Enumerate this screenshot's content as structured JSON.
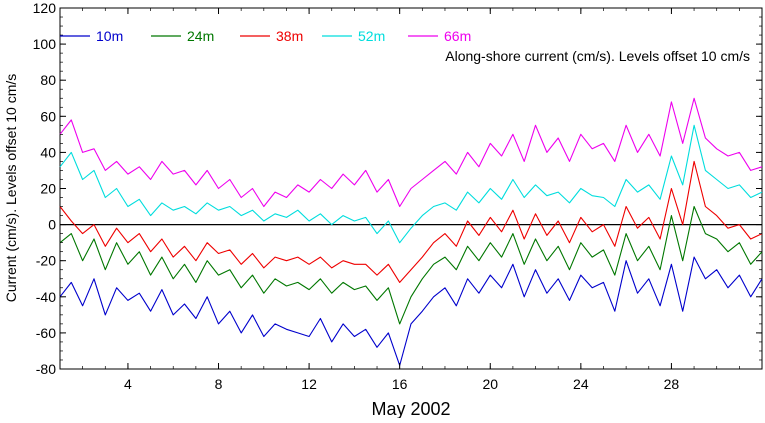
{
  "chart_data": {
    "type": "line",
    "xlabel": "May 2002",
    "ylabel": "Current (cm/s). Levels offset 10 cm/s",
    "annotation": "Along-shore current (cm/s). Levels offset 10 cm/s",
    "xlim": [
      1,
      32
    ],
    "ylim": [
      -80,
      120
    ],
    "x_ticks": [
      4,
      8,
      12,
      16,
      20,
      24,
      28
    ],
    "y_ticks": [
      -80,
      -60,
      -40,
      -20,
      0,
      20,
      40,
      60,
      80,
      100,
      120
    ],
    "zero_line": 0,
    "legend_position": "top-left",
    "series": [
      {
        "name": "10m",
        "color": "#0000cc",
        "x": [
          1,
          1.5,
          2,
          2.5,
          3,
          3.5,
          4,
          4.5,
          5,
          5.5,
          6,
          6.5,
          7,
          7.5,
          8,
          8.5,
          9,
          9.5,
          10,
          10.5,
          11,
          11.5,
          12,
          12.5,
          13,
          13.5,
          14,
          14.5,
          15,
          15.5,
          16,
          16.5,
          17,
          17.5,
          18,
          18.5,
          19,
          19.5,
          20,
          20.5,
          21,
          21.5,
          22,
          22.5,
          23,
          23.5,
          24,
          24.5,
          25,
          25.5,
          26,
          26.5,
          27,
          27.5,
          28,
          28.5,
          29,
          29.5,
          30,
          30.5,
          31,
          31.5,
          32
        ],
        "values": [
          -40,
          -32,
          -45,
          -30,
          -50,
          -35,
          -42,
          -38,
          -48,
          -36,
          -50,
          -44,
          -52,
          -40,
          -55,
          -48,
          -60,
          -50,
          -62,
          -55,
          -58,
          -60,
          -62,
          -52,
          -65,
          -55,
          -62,
          -58,
          -68,
          -60,
          -78,
          -55,
          -48,
          -40,
          -35,
          -45,
          -30,
          -38,
          -28,
          -35,
          -22,
          -40,
          -25,
          -38,
          -30,
          -42,
          -28,
          -35,
          -32,
          -48,
          -20,
          -38,
          -30,
          -45,
          -22,
          -48,
          -18,
          -30,
          -25,
          -35,
          -28,
          -40,
          -30
        ]
      },
      {
        "name": "24m",
        "color": "#007700",
        "x": [
          1,
          1.5,
          2,
          2.5,
          3,
          3.5,
          4,
          4.5,
          5,
          5.5,
          6,
          6.5,
          7,
          7.5,
          8,
          8.5,
          9,
          9.5,
          10,
          10.5,
          11,
          11.5,
          12,
          12.5,
          13,
          13.5,
          14,
          14.5,
          15,
          15.5,
          16,
          16.5,
          17,
          17.5,
          18,
          18.5,
          19,
          19.5,
          20,
          20.5,
          21,
          21.5,
          22,
          22.5,
          23,
          23.5,
          24,
          24.5,
          25,
          25.5,
          26,
          26.5,
          27,
          27.5,
          28,
          28.5,
          29,
          29.5,
          30,
          30.5,
          31,
          31.5,
          32
        ],
        "values": [
          -10,
          -5,
          -20,
          -8,
          -25,
          -10,
          -22,
          -15,
          -28,
          -18,
          -30,
          -22,
          -32,
          -20,
          -28,
          -25,
          -35,
          -28,
          -38,
          -30,
          -34,
          -32,
          -36,
          -30,
          -38,
          -32,
          -36,
          -34,
          -42,
          -35,
          -55,
          -40,
          -30,
          -22,
          -18,
          -25,
          -12,
          -20,
          -10,
          -18,
          -5,
          -22,
          -8,
          -20,
          -12,
          -25,
          -10,
          -18,
          -14,
          -28,
          -5,
          -20,
          -12,
          -25,
          5,
          -20,
          10,
          -5,
          -8,
          -15,
          -10,
          -22,
          -15
        ]
      },
      {
        "name": "38m",
        "color": "#ee0000",
        "x": [
          1,
          1.5,
          2,
          2.5,
          3,
          3.5,
          4,
          4.5,
          5,
          5.5,
          6,
          6.5,
          7,
          7.5,
          8,
          8.5,
          9,
          9.5,
          10,
          10.5,
          11,
          11.5,
          12,
          12.5,
          13,
          13.5,
          14,
          14.5,
          15,
          15.5,
          16,
          16.5,
          17,
          17.5,
          18,
          18.5,
          19,
          19.5,
          20,
          20.5,
          21,
          21.5,
          22,
          22.5,
          23,
          23.5,
          24,
          24.5,
          25,
          25.5,
          26,
          26.5,
          27,
          27.5,
          28,
          28.5,
          29,
          29.5,
          30,
          30.5,
          31,
          31.5,
          32
        ],
        "values": [
          10,
          2,
          -5,
          0,
          -12,
          -2,
          -10,
          -5,
          -15,
          -8,
          -18,
          -12,
          -20,
          -10,
          -16,
          -14,
          -22,
          -16,
          -24,
          -18,
          -20,
          -18,
          -22,
          -18,
          -24,
          -20,
          -22,
          -22,
          -28,
          -22,
          -32,
          -25,
          -18,
          -10,
          -5,
          -12,
          2,
          -6,
          4,
          -4,
          8,
          -8,
          6,
          -6,
          2,
          -10,
          4,
          -4,
          0,
          -12,
          10,
          -2,
          4,
          -8,
          20,
          0,
          35,
          10,
          5,
          -2,
          0,
          -8,
          -5
        ]
      },
      {
        "name": "52m",
        "color": "#00dddd",
        "x": [
          1,
          1.5,
          2,
          2.5,
          3,
          3.5,
          4,
          4.5,
          5,
          5.5,
          6,
          6.5,
          7,
          7.5,
          8,
          8.5,
          9,
          9.5,
          10,
          10.5,
          11,
          11.5,
          12,
          12.5,
          13,
          13.5,
          14,
          14.5,
          15,
          15.5,
          16,
          16.5,
          17,
          17.5,
          18,
          18.5,
          19,
          19.5,
          20,
          20.5,
          21,
          21.5,
          22,
          22.5,
          23,
          23.5,
          24,
          24.5,
          25,
          25.5,
          26,
          26.5,
          27,
          27.5,
          28,
          28.5,
          29,
          29.5,
          30,
          30.5,
          31,
          31.5,
          32
        ],
        "values": [
          32,
          40,
          25,
          30,
          15,
          20,
          10,
          14,
          5,
          12,
          8,
          10,
          6,
          12,
          8,
          10,
          5,
          8,
          2,
          6,
          4,
          8,
          2,
          6,
          0,
          5,
          2,
          4,
          -5,
          2,
          -10,
          -2,
          5,
          10,
          12,
          8,
          18,
          12,
          20,
          14,
          25,
          15,
          22,
          16,
          18,
          12,
          20,
          16,
          15,
          10,
          25,
          18,
          22,
          14,
          38,
          22,
          55,
          30,
          25,
          20,
          22,
          15,
          18
        ]
      },
      {
        "name": "66m",
        "color": "#ee00ee",
        "x": [
          1,
          1.5,
          2,
          2.5,
          3,
          3.5,
          4,
          4.5,
          5,
          5.5,
          6,
          6.5,
          7,
          7.5,
          8,
          8.5,
          9,
          9.5,
          10,
          10.5,
          11,
          11.5,
          12,
          12.5,
          13,
          13.5,
          14,
          14.5,
          15,
          15.5,
          16,
          16.5,
          17,
          17.5,
          18,
          18.5,
          19,
          19.5,
          20,
          20.5,
          21,
          21.5,
          22,
          22.5,
          23,
          23.5,
          24,
          24.5,
          25,
          25.5,
          26,
          26.5,
          27,
          27.5,
          28,
          28.5,
          29,
          29.5,
          30,
          30.5,
          31,
          31.5,
          32
        ],
        "values": [
          50,
          58,
          40,
          42,
          30,
          35,
          28,
          32,
          25,
          35,
          28,
          30,
          22,
          30,
          20,
          25,
          15,
          20,
          10,
          18,
          15,
          22,
          18,
          25,
          20,
          28,
          22,
          30,
          18,
          25,
          10,
          20,
          25,
          30,
          35,
          28,
          40,
          32,
          45,
          38,
          50,
          35,
          55,
          40,
          48,
          35,
          50,
          42,
          45,
          35,
          55,
          40,
          50,
          38,
          68,
          45,
          70,
          48,
          42,
          38,
          40,
          30,
          32
        ]
      }
    ]
  }
}
